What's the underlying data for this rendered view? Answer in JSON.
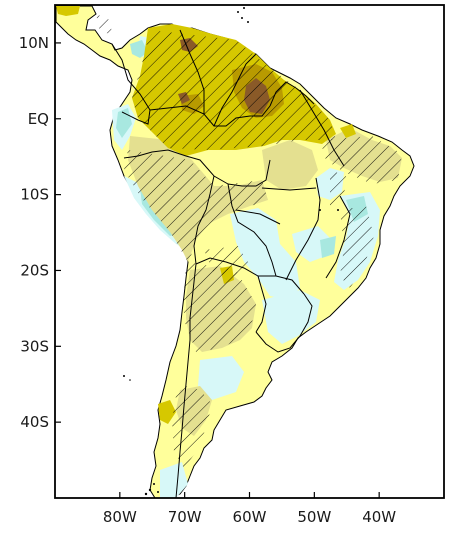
{
  "map": {
    "lat_labels": [
      "10N",
      "EQ",
      "10S",
      "20S",
      "30S",
      "40S"
    ],
    "lon_labels": [
      "80W",
      "70W",
      "60W",
      "50W",
      "40W"
    ],
    "lat_range": [
      -50,
      15
    ],
    "lon_range": [
      -90,
      -30
    ],
    "colors": {
      "ocean": "#ffffff",
      "land_base": "#ffff9b",
      "light_cyan": "#d7f8f8",
      "cyan": "#a8e8e0",
      "tan": "#e4e090",
      "olive": "#d6c800",
      "dark_olive": "#b89a00",
      "brown": "#8a5a28",
      "border": "#000000"
    },
    "shading": [
      "land_base",
      "light_cyan",
      "cyan",
      "tan",
      "olive",
      "dark_olive",
      "brown"
    ],
    "hatching": "significance-hatch"
  }
}
